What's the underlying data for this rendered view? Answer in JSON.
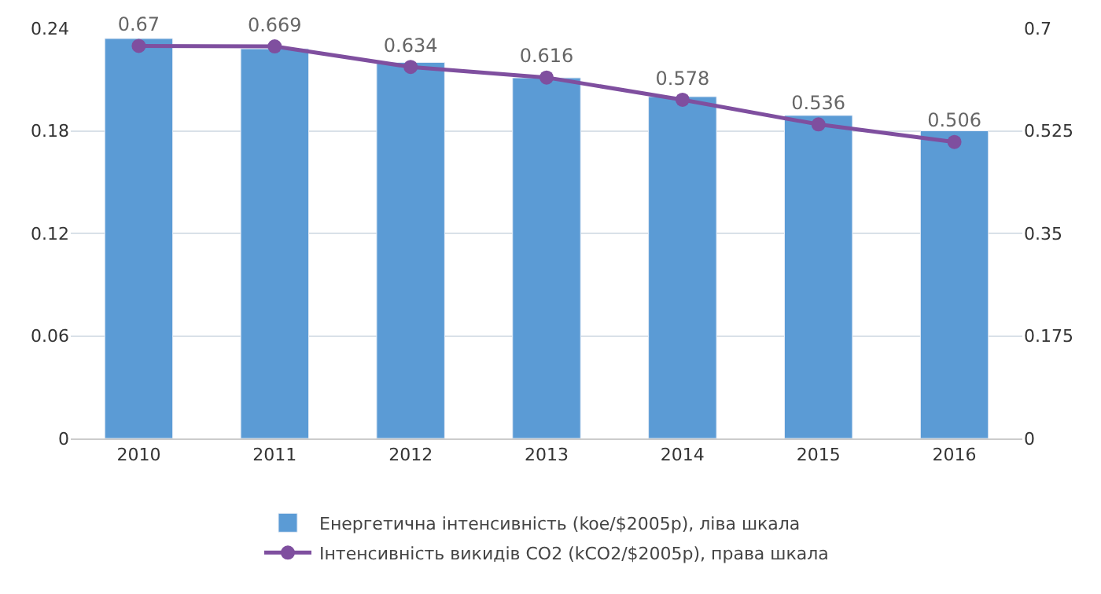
{
  "chart_data": {
    "type": "bar",
    "categories": [
      "2010",
      "2011",
      "2012",
      "2013",
      "2014",
      "2015",
      "2016"
    ],
    "series": [
      {
        "name": "Енергетична інтенсивність (koe/$2005р), ліва шкала",
        "color": "#5b9bd5",
        "values": [
          0.234,
          0.228,
          0.22,
          0.211,
          0.2,
          0.189,
          0.18
        ]
      },
      {
        "name": "Інтенсивність викидів CO2 (kCO2/$2005р), права шкала",
        "type": "line",
        "axis": "y2",
        "color": "#7f4f9f",
        "marker": "circle",
        "data_labels": true,
        "values": [
          0.67,
          0.669,
          0.634,
          0.616,
          0.578,
          0.536,
          0.506
        ]
      }
    ],
    "ylim": [
      0,
      0.24
    ],
    "yticks": [
      0,
      0.06,
      0.12,
      0.18,
      0.24
    ],
    "y2lim": [
      0,
      0.7
    ],
    "y2ticks": [
      0,
      0.175,
      0.35,
      0.525,
      0.7
    ],
    "grid": "y",
    "legend": "bottom"
  }
}
